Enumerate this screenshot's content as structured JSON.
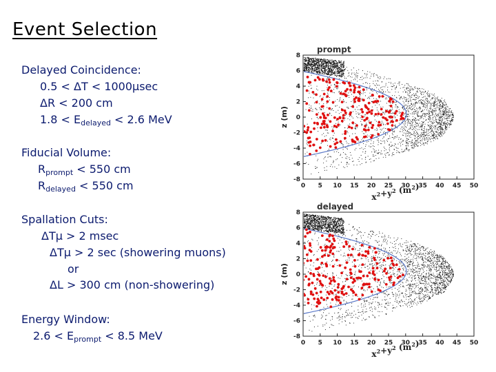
{
  "slide": {
    "title": "Event Selection"
  },
  "delayed": {
    "heading": "Delayed Coincidence:",
    "dt": "0.5 < ΔT < 1000μsec",
    "dr": "ΔR <  200 cm",
    "e_pre": "1.8 < E",
    "e_sub": "delayed",
    "e_post": " < 2.6 MeV"
  },
  "fiducial": {
    "heading": "Fiducial Volume:",
    "prompt_pre": "R",
    "prompt_sub": "prompt",
    "prompt_post": " < 550 cm",
    "delayed_pre": "R",
    "delayed_sub": "delayed",
    "delayed_post": " < 550 cm"
  },
  "spallation": {
    "heading": "Spallation Cuts:",
    "cut1": "ΔTμ  > 2 msec",
    "cut2": "ΔTμ  > 2 sec  (showering muons)",
    "or": "or",
    "cut3": "ΔL > 300 cm (non-showering)"
  },
  "energy": {
    "heading": "Energy Window:",
    "pre": "2.6 < E",
    "sub": "prompt",
    "post": " < 8.5 MeV"
  },
  "plots": [
    {
      "label": "prompt",
      "ylabel": "z (m)",
      "xlabel_base": "x",
      "xlabel_sup1": "2",
      "xlabel_mid": "+y",
      "xlabel_sup2": "2",
      "xlabel_unit": " (m",
      "xlabel_sup3": "2",
      "xlabel_close": ")",
      "xticks": [
        "0",
        "5",
        "10",
        "15",
        "20",
        "25",
        "30",
        "35",
        "40",
        "45",
        "50"
      ],
      "yticks": [
        "8",
        "6",
        "4",
        "2",
        "0",
        "-2",
        "-4",
        "-6",
        "-8"
      ],
      "points_color": "#e01010",
      "background_color": "#111111",
      "boundary_color": "#5a78c8",
      "x_range": [
        0,
        50
      ],
      "y_range": [
        -8,
        8
      ]
    },
    {
      "label": "delayed",
      "ylabel": "z (m)",
      "xlabel_base": "x",
      "xlabel_sup1": "2",
      "xlabel_mid": "+y",
      "xlabel_sup2": "2",
      "xlabel_unit": " (m",
      "xlabel_sup3": "2",
      "xlabel_close": ")",
      "xticks": [
        "0",
        "5",
        "10",
        "15",
        "20",
        "25",
        "30",
        "35",
        "40",
        "45",
        "50"
      ],
      "yticks": [
        "8",
        "6",
        "4",
        "2",
        "0",
        "-2",
        "-4",
        "-6",
        "-8"
      ],
      "points_color": "#e01010",
      "background_color": "#111111",
      "boundary_color": "#5a78c8",
      "x_range": [
        0,
        50
      ],
      "y_range": [
        -8,
        8
      ]
    }
  ]
}
